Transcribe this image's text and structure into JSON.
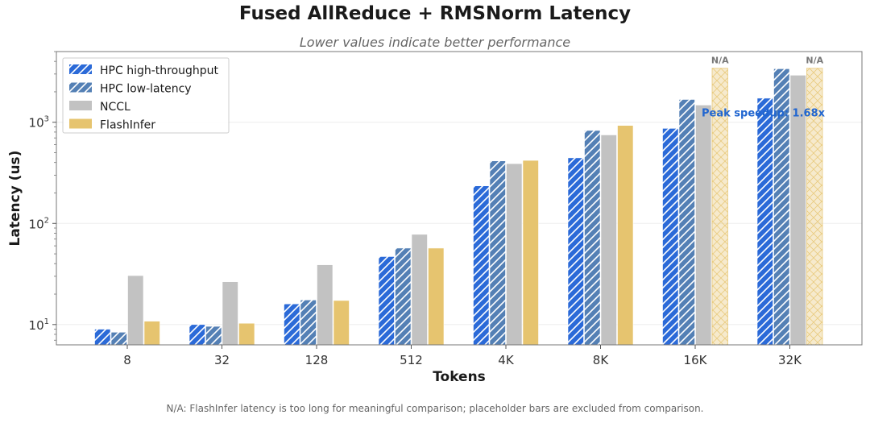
{
  "chart_data": {
    "type": "bar",
    "title": "Fused AllReduce + RMSNorm Latency",
    "subtitle": "Lower values indicate better performance",
    "xlabel": "Tokens",
    "ylabel": "Latency (us)",
    "yscale": "log",
    "ylim": [
      6.3,
      5000
    ],
    "yticks": [
      {
        "value": 10,
        "base": "10",
        "exp": "1"
      },
      {
        "value": 100,
        "base": "10",
        "exp": "2"
      },
      {
        "value": 1000,
        "base": "10",
        "exp": "3"
      }
    ],
    "categories": [
      "8",
      "32",
      "128",
      "512",
      "4K",
      "8K",
      "16K",
      "32K"
    ],
    "series": [
      {
        "name": "HPC high-throughput",
        "color": "#2b6ad8",
        "hatch": true,
        "values": [
          9,
          10,
          16,
          47,
          235,
          445,
          870,
          1730
        ]
      },
      {
        "name": "HPC low-latency",
        "color": "#5480b5",
        "hatch": true,
        "values": [
          8.4,
          9.6,
          17.5,
          57,
          415,
          830,
          1680,
          3380
        ]
      },
      {
        "name": "NCCL",
        "color": "#c2c2c2",
        "hatch": false,
        "values": [
          30.5,
          26.5,
          39,
          78,
          390,
          750,
          1480,
          2920
        ]
      },
      {
        "name": "FlashInfer",
        "color": "#e6c46f",
        "hatch": false,
        "values": [
          10.8,
          10.3,
          17.3,
          57,
          420,
          930,
          null,
          null
        ]
      }
    ],
    "placeholders": {
      "series": "FlashInfer",
      "categories": [
        "16K",
        "32K"
      ],
      "value": 3420,
      "label": "N/A"
    },
    "annotation": {
      "text": "Peak speedup: 1.68x",
      "category": "16K",
      "value": 1250,
      "color": "#2166d0"
    },
    "legend_position": "top-left",
    "grid": "horizontal, faint"
  },
  "footnote": "N/A: FlashInfer latency is too long for meaningful comparison; placeholder bars are excluded from comparison."
}
